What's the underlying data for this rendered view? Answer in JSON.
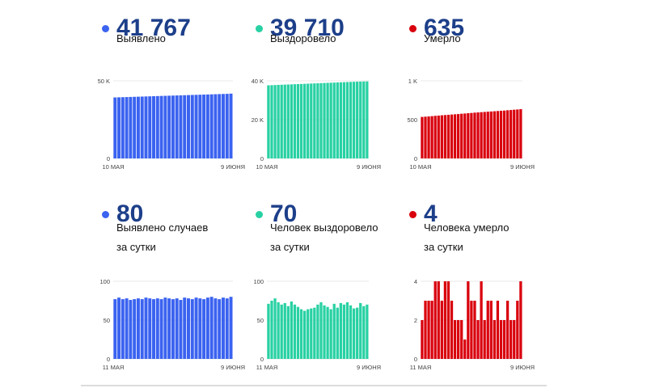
{
  "colors": {
    "blue": "#3b63f0",
    "green": "#28d1a3",
    "red": "#d9000d",
    "number": "#1d3f8a"
  },
  "panels": [
    {
      "value": "41 767",
      "label": [
        "Выявлено"
      ],
      "color_key": "blue",
      "yticks": [
        "50 K",
        "0"
      ],
      "xlabels": [
        "10 МАЯ",
        "9 ИЮНЯ"
      ]
    },
    {
      "value": "39 710",
      "label": [
        "Выздоровело"
      ],
      "color_key": "green",
      "yticks": [
        "40 K",
        "20 K",
        "0"
      ],
      "xlabels": [
        "10 МАЯ",
        "9 ИЮНЯ"
      ]
    },
    {
      "value": "635",
      "label": [
        "Умерло"
      ],
      "color_key": "red",
      "yticks": [
        "1 K",
        "500",
        "0"
      ],
      "xlabels": [
        "10 МАЯ",
        "9 ИЮНЯ"
      ]
    },
    {
      "value": "80",
      "label": [
        "Выявлено случаев",
        "за сутки"
      ],
      "color_key": "blue",
      "yticks": [
        "100",
        "50",
        "0"
      ],
      "xlabels": [
        "11 МАЯ",
        "9 ИЮНЯ"
      ]
    },
    {
      "value": "70",
      "label": [
        "Человек выздоровело",
        "за сутки"
      ],
      "color_key": "green",
      "yticks": [
        "100",
        "50",
        "0"
      ],
      "xlabels": [
        "11 МАЯ",
        "9 ИЮНЯ"
      ]
    },
    {
      "value": "4",
      "label": [
        "Человека умерло",
        "за сутки"
      ],
      "color_key": "red",
      "yticks": [
        "4",
        "2",
        "0"
      ],
      "xlabels": [
        "11 МАЯ",
        "9 ИЮНЯ"
      ]
    }
  ],
  "chart_data": [
    {
      "type": "bar",
      "x_range": [
        "10 МАЯ",
        "9 ИЮНЯ"
      ],
      "ylim": [
        0,
        50000
      ],
      "values": [
        39300,
        39380,
        39460,
        39540,
        39620,
        39700,
        39780,
        39860,
        39940,
        40020,
        40100,
        40180,
        40260,
        40340,
        40420,
        40500,
        40580,
        40660,
        40740,
        40820,
        40900,
        40980,
        41060,
        41140,
        41220,
        41300,
        41380,
        41460,
        41540,
        41620,
        41767
      ]
    },
    {
      "type": "bar",
      "x_range": [
        "10 МАЯ",
        "9 ИЮНЯ"
      ],
      "ylim": [
        0,
        40000
      ],
      "values": [
        37700,
        37770,
        37840,
        37910,
        37980,
        38050,
        38120,
        38190,
        38260,
        38330,
        38400,
        38470,
        38540,
        38610,
        38680,
        38750,
        38820,
        38890,
        38960,
        39030,
        39100,
        39170,
        39240,
        39310,
        39380,
        39450,
        39520,
        39590,
        39640,
        39680,
        39710
      ]
    },
    {
      "type": "bar",
      "x_range": [
        "10 МАЯ",
        "9 ИЮНЯ"
      ],
      "ylim": [
        0,
        1000
      ],
      "values": [
        535,
        538,
        541,
        545,
        549,
        552,
        556,
        559,
        562,
        566,
        569,
        572,
        576,
        579,
        583,
        586,
        590,
        593,
        596,
        599,
        602,
        605,
        608,
        611,
        614,
        617,
        621,
        624,
        628,
        631,
        635
      ]
    },
    {
      "type": "bar",
      "x_range": [
        "11 МАЯ",
        "9 ИЮНЯ"
      ],
      "ylim": [
        0,
        100
      ],
      "values": [
        77,
        79,
        77,
        78,
        76,
        77,
        78,
        77,
        79,
        78,
        77,
        78,
        77,
        79,
        78,
        77,
        78,
        76,
        79,
        78,
        77,
        79,
        78,
        77,
        79,
        80,
        78,
        77,
        79,
        78,
        80
      ]
    },
    {
      "type": "bar",
      "x_range": [
        "11 МАЯ",
        "9 ИЮНЯ"
      ],
      "ylim": [
        0,
        100
      ],
      "values": [
        71,
        75,
        78,
        73,
        70,
        72,
        68,
        74,
        70,
        67,
        64,
        62,
        64,
        65,
        66,
        70,
        73,
        69,
        67,
        64,
        71,
        66,
        72,
        70,
        73,
        69,
        65,
        66,
        72,
        68,
        70
      ]
    },
    {
      "type": "bar",
      "x_range": [
        "11 МАЯ",
        "9 ИЮНЯ"
      ],
      "ylim": [
        0,
        4
      ],
      "values": [
        2,
        3,
        3,
        3,
        4,
        4,
        3,
        4,
        4,
        3,
        2,
        2,
        2,
        1,
        4,
        3,
        3,
        2,
        4,
        2,
        3,
        3,
        2,
        3,
        2,
        2,
        3,
        2,
        2,
        3,
        4
      ]
    }
  ]
}
